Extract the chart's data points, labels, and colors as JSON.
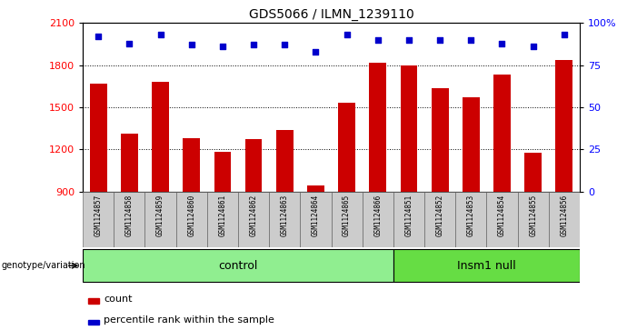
{
  "title": "GDS5066 / ILMN_1239110",
  "samples": [
    "GSM1124857",
    "GSM1124858",
    "GSM1124859",
    "GSM1124860",
    "GSM1124861",
    "GSM1124862",
    "GSM1124863",
    "GSM1124864",
    "GSM1124865",
    "GSM1124866",
    "GSM1124851",
    "GSM1124852",
    "GSM1124853",
    "GSM1124854",
    "GSM1124855",
    "GSM1124856"
  ],
  "counts": [
    1670,
    1310,
    1680,
    1280,
    1185,
    1270,
    1340,
    940,
    1530,
    1820,
    1800,
    1635,
    1570,
    1730,
    1175,
    1840
  ],
  "percentiles": [
    92,
    88,
    93,
    87,
    86,
    87,
    87,
    83,
    93,
    90,
    90,
    90,
    90,
    88,
    86,
    93
  ],
  "bar_color": "#CC0000",
  "dot_color": "#0000CC",
  "ylim_left": [
    900,
    2100
  ],
  "ylim_right": [
    0,
    100
  ],
  "yticks_left": [
    900,
    1200,
    1500,
    1800,
    2100
  ],
  "yticks_right": [
    0,
    25,
    50,
    75,
    100
  ],
  "ytick_labels_right": [
    "0",
    "25",
    "50",
    "75",
    "100%"
  ],
  "grid_values": [
    1200,
    1500,
    1800
  ],
  "xlabel_row_label": "genotype/variation",
  "legend_count": "count",
  "legend_pct": "percentile rank within the sample",
  "control_label": "control",
  "insm1_label": "Insm1 null",
  "control_color": "#90EE90",
  "insm1_color": "#66DD44",
  "ctrl_n": 10,
  "insm_n": 6,
  "sample_bg_color": "#CCCCCC",
  "bg_white": "#FFFFFF"
}
